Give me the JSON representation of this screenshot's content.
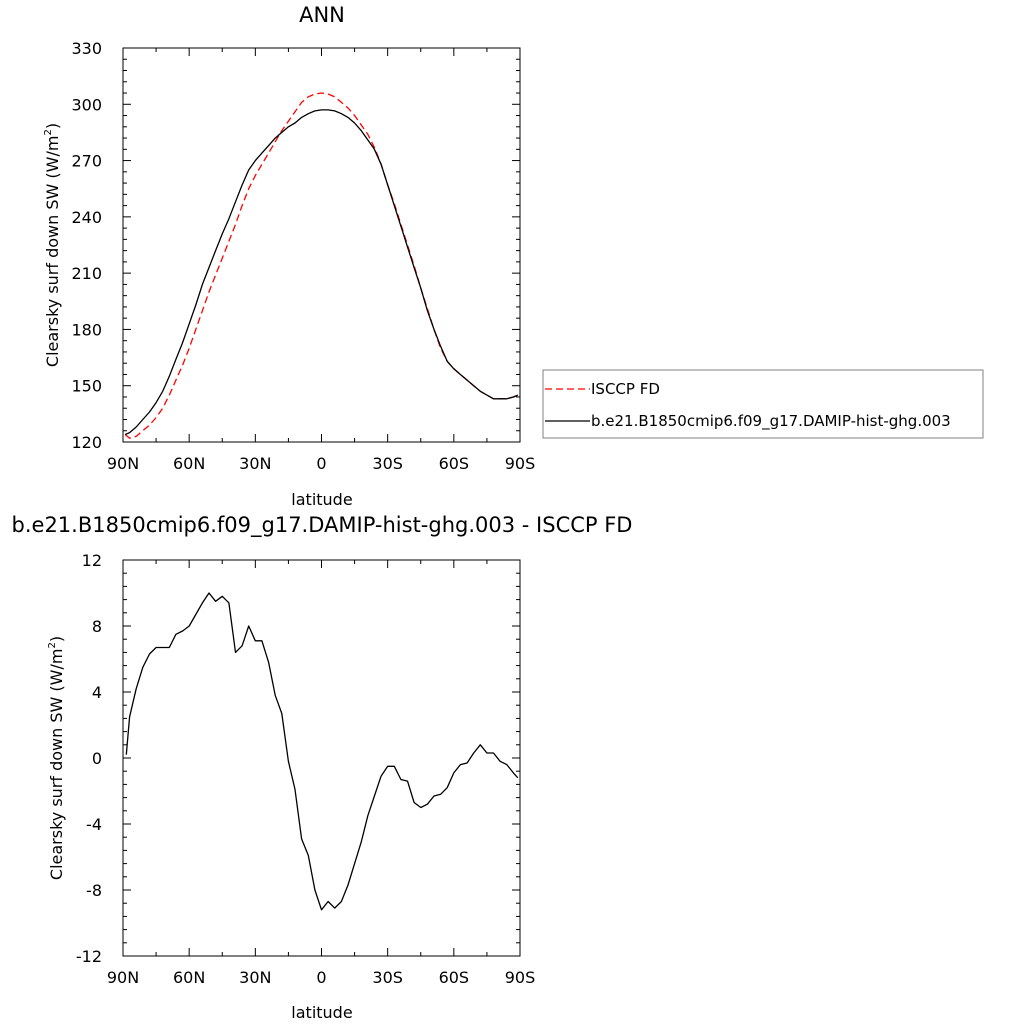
{
  "chart_data": [
    {
      "type": "line",
      "title": "ANN",
      "xlabel": "latitude",
      "ylabel_main": "Clearsky surf down SW (W/m",
      "ylabel_sup": "2",
      "ylabel_close": ")",
      "xlim": [
        -90,
        90
      ],
      "ylim": [
        120,
        330
      ],
      "x_ticks": [
        -90,
        -60,
        -30,
        0,
        30,
        60,
        90
      ],
      "x_tick_labels": [
        "90N",
        "60N",
        "30N",
        "0",
        "30S",
        "60S",
        "90S"
      ],
      "y_ticks": [
        120,
        150,
        180,
        210,
        240,
        270,
        300,
        330
      ],
      "y_tick_labels": [
        "120",
        "150",
        "180",
        "210",
        "240",
        "270",
        "300",
        "330"
      ],
      "legend_placement": "right",
      "series": [
        {
          "name": "ISCCP FD",
          "color": "#ff0000",
          "style": "dashed",
          "x": [
            -89,
            -87,
            -84,
            -81,
            -78,
            -75,
            -72,
            -69,
            -66,
            -63,
            -60,
            -57,
            -54,
            -51,
            -48,
            -45,
            -42,
            -39,
            -36,
            -33,
            -30,
            -27,
            -24,
            -21,
            -18,
            -15,
            -12,
            -9,
            -6,
            -3,
            0,
            3,
            6,
            9,
            12,
            15,
            18,
            21,
            24,
            27,
            30,
            33,
            36,
            39,
            42,
            45,
            48,
            51,
            54,
            57,
            60,
            63,
            66,
            69,
            72,
            75,
            78,
            81,
            84,
            87,
            89
          ],
          "values": [
            124,
            122,
            123,
            126,
            129,
            133,
            138,
            145,
            153,
            161,
            170,
            180,
            190,
            200,
            209,
            218,
            227,
            236,
            246,
            255,
            262,
            268,
            274,
            280,
            286,
            291,
            296,
            301,
            304,
            305.5,
            306,
            305.5,
            304,
            301,
            298,
            294,
            289,
            284,
            277,
            268,
            257,
            247,
            236,
            225,
            214,
            202,
            191,
            180,
            170,
            163,
            159,
            156,
            153,
            150,
            147,
            145,
            143,
            143,
            143,
            144,
            145
          ]
        },
        {
          "name": "b.e21.B1850cmip6.f09_g17.DAMIP-hist-ghg.003",
          "color": "#000000",
          "style": "solid",
          "x": [
            -89,
            -87,
            -84,
            -81,
            -78,
            -75,
            -72,
            -69,
            -66,
            -63,
            -60,
            -57,
            -54,
            -51,
            -48,
            -45,
            -42,
            -39,
            -36,
            -33,
            -30,
            -27,
            -24,
            -21,
            -18,
            -15,
            -12,
            -9,
            -6,
            -3,
            0,
            3,
            6,
            9,
            12,
            15,
            18,
            21,
            24,
            27,
            30,
            33,
            36,
            39,
            42,
            45,
            48,
            51,
            54,
            57,
            60,
            63,
            66,
            69,
            72,
            75,
            78,
            81,
            84,
            87,
            89
          ],
          "values": [
            124,
            125,
            128,
            132,
            136,
            141,
            147,
            155,
            164,
            173,
            183,
            193,
            204,
            213,
            222,
            231,
            239,
            248,
            257,
            265,
            270,
            274,
            278,
            282,
            285,
            288,
            290,
            293,
            295,
            296.5,
            297,
            297,
            296.5,
            295,
            293,
            290,
            286,
            281,
            276,
            268,
            257,
            246,
            235,
            224,
            213,
            202,
            190,
            180,
            171,
            163,
            159,
            156,
            153,
            150,
            147,
            145,
            143,
            143,
            143,
            144,
            145
          ]
        }
      ]
    },
    {
      "type": "line",
      "title": "b.e21.B1850cmip6.f09_g17.DAMIP-hist-ghg.003 - ISCCP FD",
      "xlabel": "latitude",
      "ylabel_main": "Clearsky surf down SW (W/m",
      "ylabel_sup": "2",
      "ylabel_close": ")",
      "xlim": [
        -90,
        90
      ],
      "ylim": [
        -12,
        12
      ],
      "x_ticks": [
        -90,
        -60,
        -30,
        0,
        30,
        60,
        90
      ],
      "x_tick_labels": [
        "90N",
        "60N",
        "30N",
        "0",
        "30S",
        "60S",
        "90S"
      ],
      "y_ticks": [
        -12,
        -8,
        -4,
        0,
        4,
        8,
        12
      ],
      "y_tick_labels": [
        "-12",
        "-8",
        "-4",
        "0",
        "4",
        "8",
        "12"
      ],
      "series": [
        {
          "color": "#000000",
          "style": "solid",
          "x": [
            -88.5,
            -87,
            -84,
            -81,
            -78,
            -75,
            -72,
            -69,
            -66,
            -63,
            -60,
            -57,
            -54,
            -51,
            -48,
            -45,
            -42,
            -39,
            -36,
            -33,
            -30,
            -27,
            -24,
            -21,
            -18,
            -15,
            -12,
            -9,
            -6,
            -3,
            0,
            3,
            6,
            9,
            12,
            15,
            18,
            21,
            24,
            27,
            30,
            33,
            36,
            39,
            42,
            45,
            48,
            51,
            54,
            57,
            60,
            63,
            66,
            69,
            72,
            75,
            78,
            81,
            84,
            87,
            89
          ],
          "values": [
            0.2,
            2.5,
            4.2,
            5.5,
            6.3,
            6.7,
            6.7,
            6.7,
            7.5,
            7.7,
            8.0,
            8.7,
            9.4,
            10.0,
            9.5,
            9.8,
            9.4,
            6.4,
            6.8,
            8.0,
            7.1,
            7.1,
            5.8,
            3.8,
            2.7,
            -0.2,
            -1.9,
            -4.9,
            -5.9,
            -8.0,
            -9.2,
            -8.7,
            -9.1,
            -8.7,
            -7.7,
            -6.4,
            -5.1,
            -3.5,
            -2.3,
            -1.1,
            -0.5,
            -0.5,
            -1.3,
            -1.4,
            -2.7,
            -3.0,
            -2.8,
            -2.3,
            -2.2,
            -1.8,
            -0.9,
            -0.4,
            -0.3,
            0.3,
            0.8,
            0.3,
            0.3,
            -0.2,
            -0.4,
            -0.9,
            -1.2
          ]
        }
      ]
    }
  ]
}
